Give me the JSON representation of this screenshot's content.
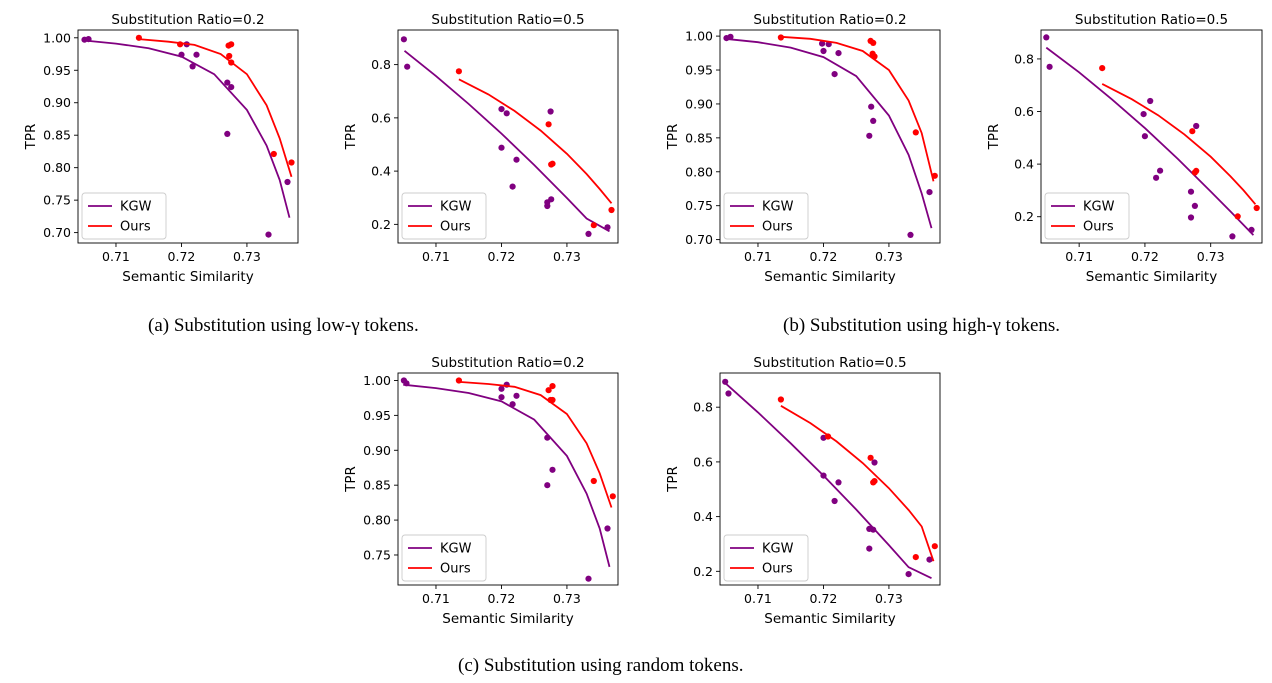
{
  "captions": {
    "a": "(a) Substitution using low-γ tokens.",
    "b": "(b) Substitution using high-γ tokens.",
    "c": "(c) Substitution using random tokens."
  },
  "colors": {
    "kgw": "#800080",
    "ours": "#ff0000"
  },
  "chart_data": [
    {
      "type": "scatter",
      "title": "Substitution Ratio=0.2",
      "xlabel": "Semantic Similarity",
      "ylabel": "TPR",
      "xlim": [
        0.7042,
        0.7378
      ],
      "ylim": [
        0.684,
        1.012
      ],
      "xticks": [
        0.71,
        0.72,
        0.73
      ],
      "yticks": [
        0.7,
        0.75,
        0.8,
        0.85,
        0.9,
        0.95,
        1.0
      ],
      "yfmt": 2,
      "legend": "lower-left",
      "series": [
        {
          "name": "KGW",
          "color": "#800080",
          "points": [
            [
              0.7052,
              0.997
            ],
            [
              0.7058,
              0.998
            ],
            [
              0.72,
              0.974
            ],
            [
              0.7208,
              0.99
            ],
            [
              0.7217,
              0.956
            ],
            [
              0.7223,
              0.974
            ],
            [
              0.727,
              0.931
            ],
            [
              0.727,
              0.852
            ],
            [
              0.7276,
              0.924
            ],
            [
              0.7333,
              0.697
            ],
            [
              0.7362,
              0.778
            ]
          ],
          "fit": [
            [
              0.705,
              0.996
            ],
            [
              0.71,
              0.991
            ],
            [
              0.715,
              0.984
            ],
            [
              0.72,
              0.971
            ],
            [
              0.725,
              0.944
            ],
            [
              0.73,
              0.889
            ],
            [
              0.733,
              0.834
            ],
            [
              0.735,
              0.781
            ],
            [
              0.7365,
              0.723
            ]
          ]
        },
        {
          "name": "Ours",
          "color": "#ff0000",
          "points": [
            [
              0.7135,
              1.0
            ],
            [
              0.7198,
              0.99
            ],
            [
              0.7272,
              0.988
            ],
            [
              0.7276,
              0.99
            ],
            [
              0.7273,
              0.972
            ],
            [
              0.7276,
              0.962
            ],
            [
              0.7341,
              0.821
            ],
            [
              0.7368,
              0.808
            ]
          ],
          "fit": [
            [
              0.7135,
              0.998
            ],
            [
              0.718,
              0.994
            ],
            [
              0.722,
              0.989
            ],
            [
              0.726,
              0.975
            ],
            [
              0.73,
              0.944
            ],
            [
              0.733,
              0.896
            ],
            [
              0.735,
              0.845
            ],
            [
              0.7368,
              0.786
            ]
          ]
        }
      ]
    },
    {
      "type": "scatter",
      "title": "Substitution Ratio=0.5",
      "xlabel": "",
      "ylabel": "TPR",
      "xlim": [
        0.7042,
        0.7378
      ],
      "ylim": [
        0.13,
        0.93
      ],
      "xticks": [
        0.71,
        0.72,
        0.73
      ],
      "yticks": [
        0.2,
        0.4,
        0.6,
        0.8
      ],
      "yfmt": 1,
      "legend": "lower-left",
      "series": [
        {
          "name": "KGW",
          "color": "#800080",
          "points": [
            [
              0.7051,
              0.895
            ],
            [
              0.7056,
              0.792
            ],
            [
              0.72,
              0.633
            ],
            [
              0.7208,
              0.617
            ],
            [
              0.72,
              0.488
            ],
            [
              0.7223,
              0.443
            ],
            [
              0.7217,
              0.342
            ],
            [
              0.7275,
              0.624
            ],
            [
              0.727,
              0.283
            ],
            [
              0.727,
              0.269
            ],
            [
              0.7276,
              0.294
            ],
            [
              0.7333,
              0.164
            ],
            [
              0.7362,
              0.189
            ]
          ],
          "fit": [
            [
              0.7052,
              0.852
            ],
            [
              0.71,
              0.757
            ],
            [
              0.715,
              0.652
            ],
            [
              0.72,
              0.541
            ],
            [
              0.725,
              0.423
            ],
            [
              0.73,
              0.299
            ],
            [
              0.733,
              0.222
            ],
            [
              0.7365,
              0.174
            ]
          ]
        },
        {
          "name": "Ours",
          "color": "#ff0000",
          "points": [
            [
              0.7135,
              0.775
            ],
            [
              0.7272,
              0.576
            ],
            [
              0.7276,
              0.425
            ],
            [
              0.7278,
              0.428
            ],
            [
              0.7341,
              0.197
            ],
            [
              0.7368,
              0.254
            ]
          ],
          "fit": [
            [
              0.7135,
              0.745
            ],
            [
              0.718,
              0.688
            ],
            [
              0.722,
              0.626
            ],
            [
              0.726,
              0.552
            ],
            [
              0.73,
              0.465
            ],
            [
              0.733,
              0.389
            ],
            [
              0.735,
              0.333
            ],
            [
              0.7368,
              0.279
            ]
          ]
        }
      ]
    },
    {
      "type": "scatter",
      "title": "Substitution Ratio=0.2",
      "xlabel": "Semantic Similarity",
      "ylabel": "TPR",
      "xlim": [
        0.7042,
        0.7378
      ],
      "ylim": [
        0.695,
        1.009
      ],
      "xticks": [
        0.71,
        0.72,
        0.73
      ],
      "yticks": [
        0.7,
        0.75,
        0.8,
        0.85,
        0.9,
        0.95,
        1.0
      ],
      "yfmt": 2,
      "legend": "lower-left",
      "series": [
        {
          "name": "KGW",
          "color": "#800080",
          "points": [
            [
              0.7052,
              0.997
            ],
            [
              0.7058,
              0.999
            ],
            [
              0.7198,
              0.989
            ],
            [
              0.72,
              0.978
            ],
            [
              0.7208,
              0.988
            ],
            [
              0.7217,
              0.944
            ],
            [
              0.7223,
              0.975
            ],
            [
              0.7273,
              0.896
            ],
            [
              0.727,
              0.853
            ],
            [
              0.7276,
              0.875
            ],
            [
              0.7333,
              0.707
            ],
            [
              0.7362,
              0.77
            ]
          ],
          "fit": [
            [
              0.705,
              0.996
            ],
            [
              0.71,
              0.991
            ],
            [
              0.715,
              0.983
            ],
            [
              0.72,
              0.969
            ],
            [
              0.725,
              0.941
            ],
            [
              0.73,
              0.883
            ],
            [
              0.733,
              0.825
            ],
            [
              0.735,
              0.768
            ],
            [
              0.7365,
              0.717
            ]
          ]
        },
        {
          "name": "Ours",
          "color": "#ff0000",
          "points": [
            [
              0.7135,
              0.998
            ],
            [
              0.7272,
              0.993
            ],
            [
              0.7276,
              0.99
            ],
            [
              0.7275,
              0.974
            ],
            [
              0.7278,
              0.97
            ],
            [
              0.7341,
              0.858
            ],
            [
              0.737,
              0.794
            ]
          ],
          "fit": [
            [
              0.7135,
              0.999
            ],
            [
              0.718,
              0.996
            ],
            [
              0.722,
              0.99
            ],
            [
              0.726,
              0.978
            ],
            [
              0.73,
              0.95
            ],
            [
              0.733,
              0.905
            ],
            [
              0.735,
              0.857
            ],
            [
              0.7368,
              0.786
            ]
          ]
        }
      ]
    },
    {
      "type": "scatter",
      "title": "Substitution Ratio=0.5",
      "xlabel": "Semantic Similarity",
      "ylabel": "TPR",
      "xlim": [
        0.7042,
        0.7378
      ],
      "ylim": [
        0.1,
        0.91
      ],
      "xticks": [
        0.71,
        0.72,
        0.73
      ],
      "yticks": [
        0.2,
        0.4,
        0.6,
        0.8
      ],
      "yfmt": 1,
      "legend": "lower-left",
      "series": [
        {
          "name": "KGW",
          "color": "#800080",
          "points": [
            [
              0.705,
              0.882
            ],
            [
              0.7055,
              0.77
            ],
            [
              0.7198,
              0.59
            ],
            [
              0.72,
              0.506
            ],
            [
              0.7208,
              0.64
            ],
            [
              0.7217,
              0.348
            ],
            [
              0.7223,
              0.375
            ],
            [
              0.727,
              0.295
            ],
            [
              0.727,
              0.197
            ],
            [
              0.7276,
              0.241
            ],
            [
              0.7278,
              0.545
            ],
            [
              0.7333,
              0.125
            ],
            [
              0.7362,
              0.15
            ]
          ],
          "fit": [
            [
              0.705,
              0.843
            ],
            [
              0.71,
              0.749
            ],
            [
              0.715,
              0.646
            ],
            [
              0.72,
              0.537
            ],
            [
              0.725,
              0.42
            ],
            [
              0.73,
              0.296
            ],
            [
              0.733,
              0.22
            ],
            [
              0.7365,
              0.13
            ]
          ]
        },
        {
          "name": "Ours",
          "color": "#ff0000",
          "points": [
            [
              0.7135,
              0.765
            ],
            [
              0.7272,
              0.525
            ],
            [
              0.7276,
              0.368
            ],
            [
              0.7278,
              0.374
            ],
            [
              0.7341,
              0.201
            ],
            [
              0.737,
              0.233
            ]
          ],
          "fit": [
            [
              0.7135,
              0.705
            ],
            [
              0.718,
              0.647
            ],
            [
              0.722,
              0.586
            ],
            [
              0.726,
              0.513
            ],
            [
              0.73,
              0.428
            ],
            [
              0.733,
              0.354
            ],
            [
              0.735,
              0.3
            ],
            [
              0.7368,
              0.247
            ]
          ]
        }
      ]
    },
    {
      "type": "scatter",
      "title": "Substitution Ratio=0.2",
      "xlabel": "Semantic Similarity",
      "ylabel": "TPR",
      "xlim": [
        0.7042,
        0.7378
      ],
      "ylim": [
        0.707,
        1.0107
      ],
      "xticks": [
        0.71,
        0.72,
        0.73
      ],
      "yticks": [
        0.75,
        0.8,
        0.85,
        0.9,
        0.95,
        1.0
      ],
      "yfmt": 2,
      "legend": "lower-left",
      "series": [
        {
          "name": "KGW",
          "color": "#800080",
          "points": [
            [
              0.7051,
              1.0
            ],
            [
              0.7055,
              0.996
            ],
            [
              0.72,
              0.988
            ],
            [
              0.72,
              0.976
            ],
            [
              0.7208,
              0.994
            ],
            [
              0.7217,
              0.966
            ],
            [
              0.7223,
              0.978
            ],
            [
              0.727,
              0.918
            ],
            [
              0.727,
              0.85
            ],
            [
              0.7278,
              0.872
            ],
            [
              0.7333,
              0.716
            ],
            [
              0.7362,
              0.788
            ]
          ],
          "fit": [
            [
              0.705,
              0.994
            ],
            [
              0.71,
              0.989
            ],
            [
              0.715,
              0.982
            ],
            [
              0.72,
              0.97
            ],
            [
              0.725,
              0.944
            ],
            [
              0.73,
              0.892
            ],
            [
              0.733,
              0.838
            ],
            [
              0.735,
              0.788
            ],
            [
              0.7365,
              0.733
            ]
          ]
        },
        {
          "name": "Ours",
          "color": "#ff0000",
          "points": [
            [
              0.7135,
              1.0
            ],
            [
              0.7272,
              0.986
            ],
            [
              0.7278,
              0.992
            ],
            [
              0.7275,
              0.972
            ],
            [
              0.7278,
              0.972
            ],
            [
              0.7341,
              0.856
            ],
            [
              0.737,
              0.834
            ]
          ],
          "fit": [
            [
              0.7135,
              0.998
            ],
            [
              0.718,
              0.995
            ],
            [
              0.722,
              0.991
            ],
            [
              0.726,
              0.979
            ],
            [
              0.73,
              0.952
            ],
            [
              0.733,
              0.91
            ],
            [
              0.735,
              0.867
            ],
            [
              0.7368,
              0.818
            ]
          ]
        }
      ]
    },
    {
      "type": "scatter",
      "title": "Substitution Ratio=0.5",
      "xlabel": "Semantic Similarity",
      "ylabel": "TPR",
      "xlim": [
        0.7042,
        0.7378
      ],
      "ylim": [
        0.15,
        0.925
      ],
      "xticks": [
        0.71,
        0.72,
        0.73
      ],
      "yticks": [
        0.2,
        0.4,
        0.6,
        0.8
      ],
      "yfmt": 1,
      "legend": "lower-left",
      "series": [
        {
          "name": "KGW",
          "color": "#800080",
          "points": [
            [
              0.705,
              0.893
            ],
            [
              0.7055,
              0.85
            ],
            [
              0.72,
              0.688
            ],
            [
              0.72,
              0.55
            ],
            [
              0.7217,
              0.457
            ],
            [
              0.7223,
              0.525
            ],
            [
              0.727,
              0.355
            ],
            [
              0.727,
              0.283
            ],
            [
              0.7276,
              0.352
            ],
            [
              0.7278,
              0.598
            ],
            [
              0.733,
              0.19
            ],
            [
              0.7362,
              0.243
            ]
          ],
          "fit": [
            [
              0.705,
              0.888
            ],
            [
              0.71,
              0.781
            ],
            [
              0.715,
              0.668
            ],
            [
              0.72,
              0.55
            ],
            [
              0.725,
              0.426
            ],
            [
              0.73,
              0.296
            ],
            [
              0.733,
              0.215
            ],
            [
              0.7365,
              0.175
            ]
          ]
        },
        {
          "name": "Ours",
          "color": "#ff0000",
          "points": [
            [
              0.7135,
              0.828
            ],
            [
              0.7207,
              0.693
            ],
            [
              0.7272,
              0.615
            ],
            [
              0.7276,
              0.525
            ],
            [
              0.7278,
              0.53
            ],
            [
              0.7341,
              0.252
            ],
            [
              0.737,
              0.292
            ]
          ],
          "fit": [
            [
              0.7135,
              0.805
            ],
            [
              0.718,
              0.742
            ],
            [
              0.722,
              0.675
            ],
            [
              0.726,
              0.596
            ],
            [
              0.73,
              0.504
            ],
            [
              0.733,
              0.424
            ],
            [
              0.735,
              0.364
            ],
            [
              0.7368,
              0.237
            ]
          ]
        }
      ]
    }
  ]
}
